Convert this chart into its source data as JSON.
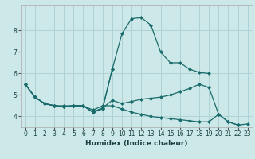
{
  "xlabel": "Humidex (Indice chaleur)",
  "bg_color": "#cce8e8",
  "grid_color": "#aad0d0",
  "line_color": "#1a6b6b",
  "xlim": [
    -0.5,
    23.5
  ],
  "ylim": [
    3.5,
    9.2
  ],
  "yticks": [
    4,
    5,
    6,
    7,
    8
  ],
  "xticks": [
    0,
    1,
    2,
    3,
    4,
    5,
    6,
    7,
    8,
    9,
    10,
    11,
    12,
    13,
    14,
    15,
    16,
    17,
    18,
    19,
    20,
    21,
    22,
    23
  ],
  "lines": [
    {
      "x": [
        0,
        1,
        2,
        3,
        4,
        5,
        6,
        7,
        8,
        9,
        10,
        11,
        12,
        13,
        14,
        15,
        16,
        17,
        18,
        19
      ],
      "y": [
        5.5,
        4.9,
        4.6,
        4.5,
        4.5,
        4.5,
        4.5,
        4.2,
        4.4,
        6.2,
        7.85,
        8.55,
        8.6,
        8.25,
        7.0,
        6.5,
        6.5,
        6.2,
        6.05,
        6.0
      ]
    },
    {
      "x": [
        0,
        1,
        2,
        3,
        4,
        5,
        6,
        7,
        8,
        9,
        10,
        11,
        12,
        13,
        14,
        15,
        16,
        17,
        18,
        19,
        20,
        21,
        22
      ],
      "y": [
        5.5,
        4.9,
        4.6,
        4.5,
        4.45,
        4.5,
        4.5,
        4.2,
        4.4,
        4.75,
        4.6,
        4.7,
        4.8,
        4.85,
        4.9,
        5.0,
        5.15,
        5.3,
        5.5,
        5.35,
        4.1,
        3.75,
        3.6
      ]
    },
    {
      "x": [
        0,
        1,
        2,
        3,
        4,
        5,
        6,
        7,
        8,
        9,
        10,
        11,
        12,
        13,
        14,
        15,
        16,
        17,
        18,
        19,
        20,
        21,
        22,
        23
      ],
      "y": [
        5.5,
        4.9,
        4.6,
        4.5,
        4.45,
        4.5,
        4.5,
        4.3,
        4.5,
        4.5,
        4.35,
        4.2,
        4.1,
        4.0,
        3.95,
        3.9,
        3.85,
        3.8,
        3.75,
        3.75,
        4.1,
        3.75,
        3.6,
        3.65
      ]
    },
    {
      "x": [
        0,
        1,
        2,
        3,
        4,
        5,
        6,
        7,
        8,
        9
      ],
      "y": [
        5.5,
        4.9,
        4.6,
        4.5,
        4.45,
        4.5,
        4.5,
        4.2,
        4.35,
        6.2
      ]
    }
  ]
}
